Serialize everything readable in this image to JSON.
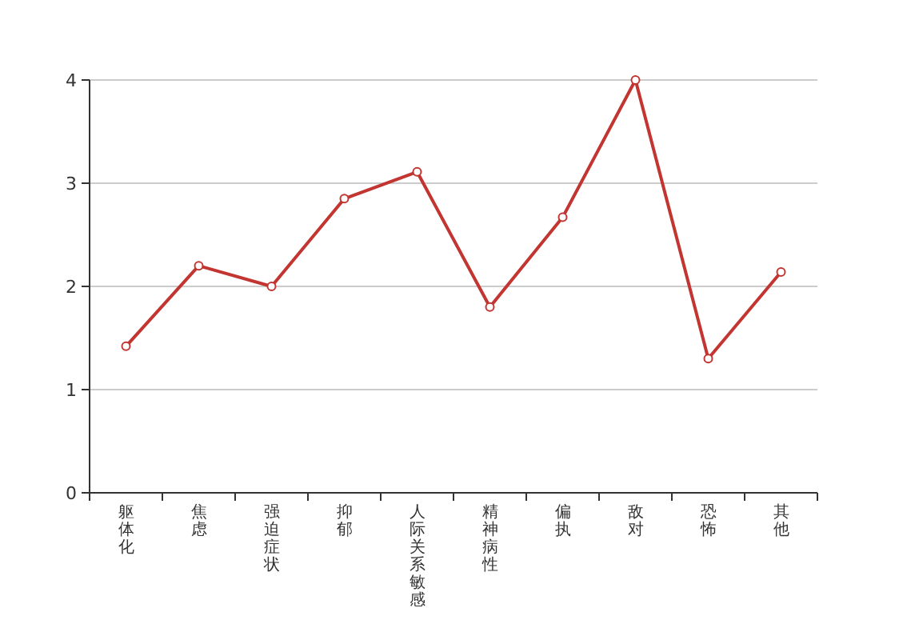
{
  "chart_data": {
    "type": "line",
    "categories": [
      "躯体化",
      "焦虑",
      "强迫症状",
      "抑郁",
      "人际关系敏感",
      "精神病性",
      "偏执",
      "敌对",
      "恐怖",
      "其他"
    ],
    "series": [
      {
        "color": "#c23531",
        "values": [
          1.42,
          2.2,
          2.0,
          2.85,
          3.11,
          1.8,
          2.67,
          4.0,
          1.3,
          2.14
        ]
      }
    ],
    "ylim": [
      0,
      4
    ],
    "yticks": [
      0,
      1,
      2,
      3,
      4
    ],
    "grid": "y",
    "marker": "circle"
  }
}
